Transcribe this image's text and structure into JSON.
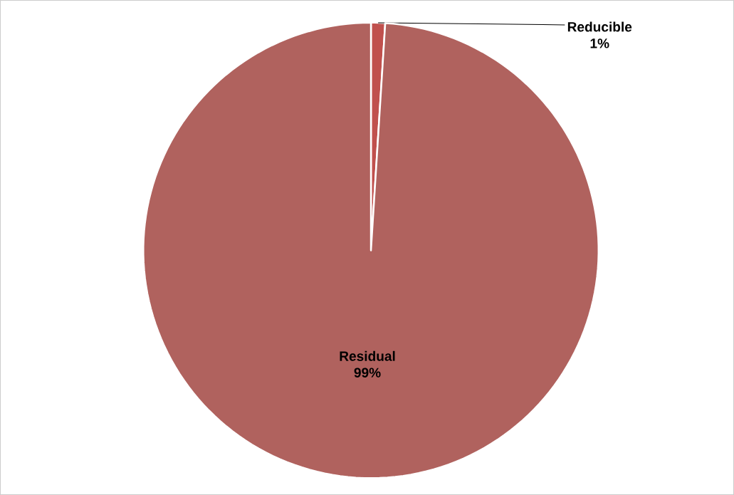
{
  "chart_data": {
    "type": "pie",
    "categories": [
      "Reducible",
      "Residual"
    ],
    "values": [
      1,
      99
    ],
    "value_labels": [
      "1%",
      "99%"
    ],
    "colors": [
      "#c0504d",
      "#b0625e"
    ]
  }
}
